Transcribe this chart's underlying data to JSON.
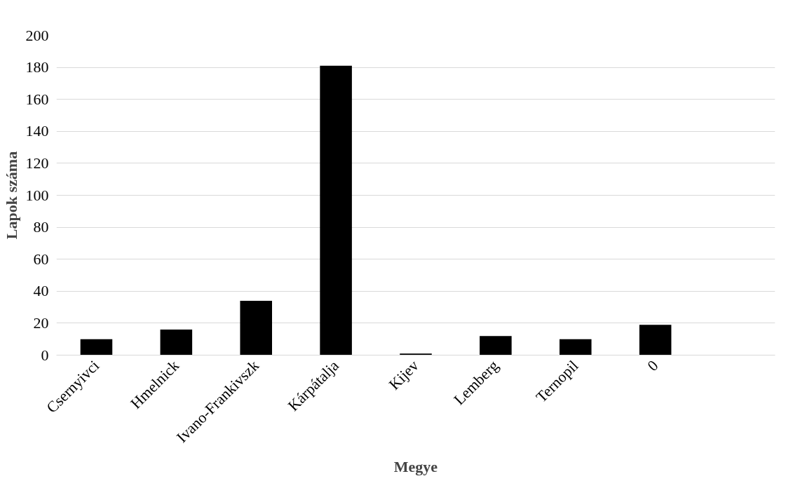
{
  "chart_data": {
    "type": "bar",
    "xlabel": "Megye",
    "ylabel": "Lapok száma",
    "categories": [
      "Csernyivci",
      "Hmelnick",
      "Ivano-Frankivszk",
      "Kárpátalja",
      "Kijev",
      "Lemberg",
      "Ternopil",
      "0",
      null
    ],
    "values": [
      10,
      16,
      34,
      181,
      1,
      12,
      10,
      19,
      null
    ],
    "color": "#000000",
    "ylim": [
      0,
      200
    ],
    "yticks": [
      0,
      20,
      40,
      60,
      80,
      100,
      120,
      140,
      160,
      180,
      200
    ],
    "grid": "y"
  }
}
